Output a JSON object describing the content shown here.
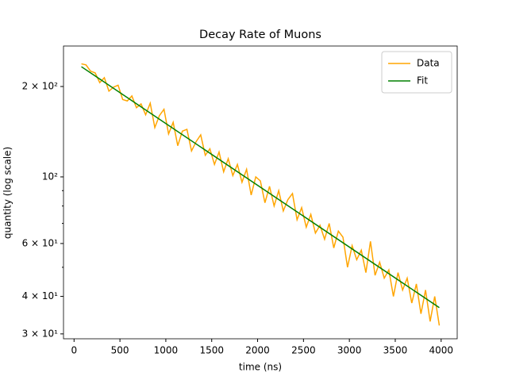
{
  "chart_data": {
    "type": "line",
    "title": "Decay Rate of Muons",
    "x_label": "time (ns)",
    "y_label": "quantity (log scale)",
    "y_log": true,
    "legend": "upper right",
    "xlim": [
      -115,
      4175
    ],
    "ylim": [
      28.9,
      272.8
    ],
    "xticks": [
      0,
      500,
      1000,
      1500,
      2000,
      2500,
      3000,
      3500,
      4000
    ],
    "yticks": [
      {
        "value": 30,
        "label": "3 × 10¹"
      },
      {
        "value": 40,
        "label": "4 × 10¹"
      },
      {
        "value": 60,
        "label": "6 × 10¹"
      },
      {
        "value": 100,
        "label": "10²"
      },
      {
        "value": 200,
        "label": "2 × 10²"
      }
    ],
    "yminor_ticks": [
      50,
      70,
      80,
      90
    ],
    "series": [
      {
        "name": "Data",
        "color": "#ffa500",
        "x": [
          80,
          130,
          180,
          230,
          280,
          330,
          380,
          430,
          480,
          530,
          580,
          630,
          680,
          730,
          780,
          830,
          880,
          930,
          980,
          1030,
          1080,
          1130,
          1180,
          1230,
          1280,
          1330,
          1380,
          1430,
          1480,
          1530,
          1580,
          1630,
          1680,
          1730,
          1780,
          1830,
          1880,
          1930,
          1980,
          2030,
          2080,
          2130,
          2180,
          2230,
          2280,
          2330,
          2380,
          2430,
          2480,
          2530,
          2580,
          2630,
          2680,
          2730,
          2780,
          2830,
          2880,
          2930,
          2980,
          3030,
          3080,
          3130,
          3180,
          3230,
          3280,
          3330,
          3380,
          3430,
          3480,
          3530,
          3580,
          3630,
          3680,
          3730,
          3780,
          3830,
          3880,
          3930,
          3980
        ],
        "values": [
          238,
          236,
          225,
          222,
          206,
          214,
          193,
          199,
          202,
          181,
          179,
          186,
          170,
          175,
          161,
          176,
          146,
          160,
          168,
          139,
          152,
          127,
          142,
          144,
          122,
          131,
          138,
          118,
          124,
          110,
          121,
          104,
          115,
          101,
          110,
          96,
          106,
          87,
          100,
          97,
          82,
          93,
          80,
          90,
          77,
          84,
          88,
          72,
          79,
          68,
          75,
          65,
          69,
          62,
          70,
          58,
          66,
          63,
          50,
          59,
          53,
          57,
          48,
          61,
          47,
          52,
          46,
          49,
          40,
          48,
          42,
          46,
          38,
          44,
          35,
          42,
          33,
          40,
          32
        ]
      },
      {
        "name": "Fit",
        "color": "#008000",
        "x": [
          80,
          3980
        ],
        "values": [
          232.8,
          36.7
        ]
      }
    ]
  }
}
